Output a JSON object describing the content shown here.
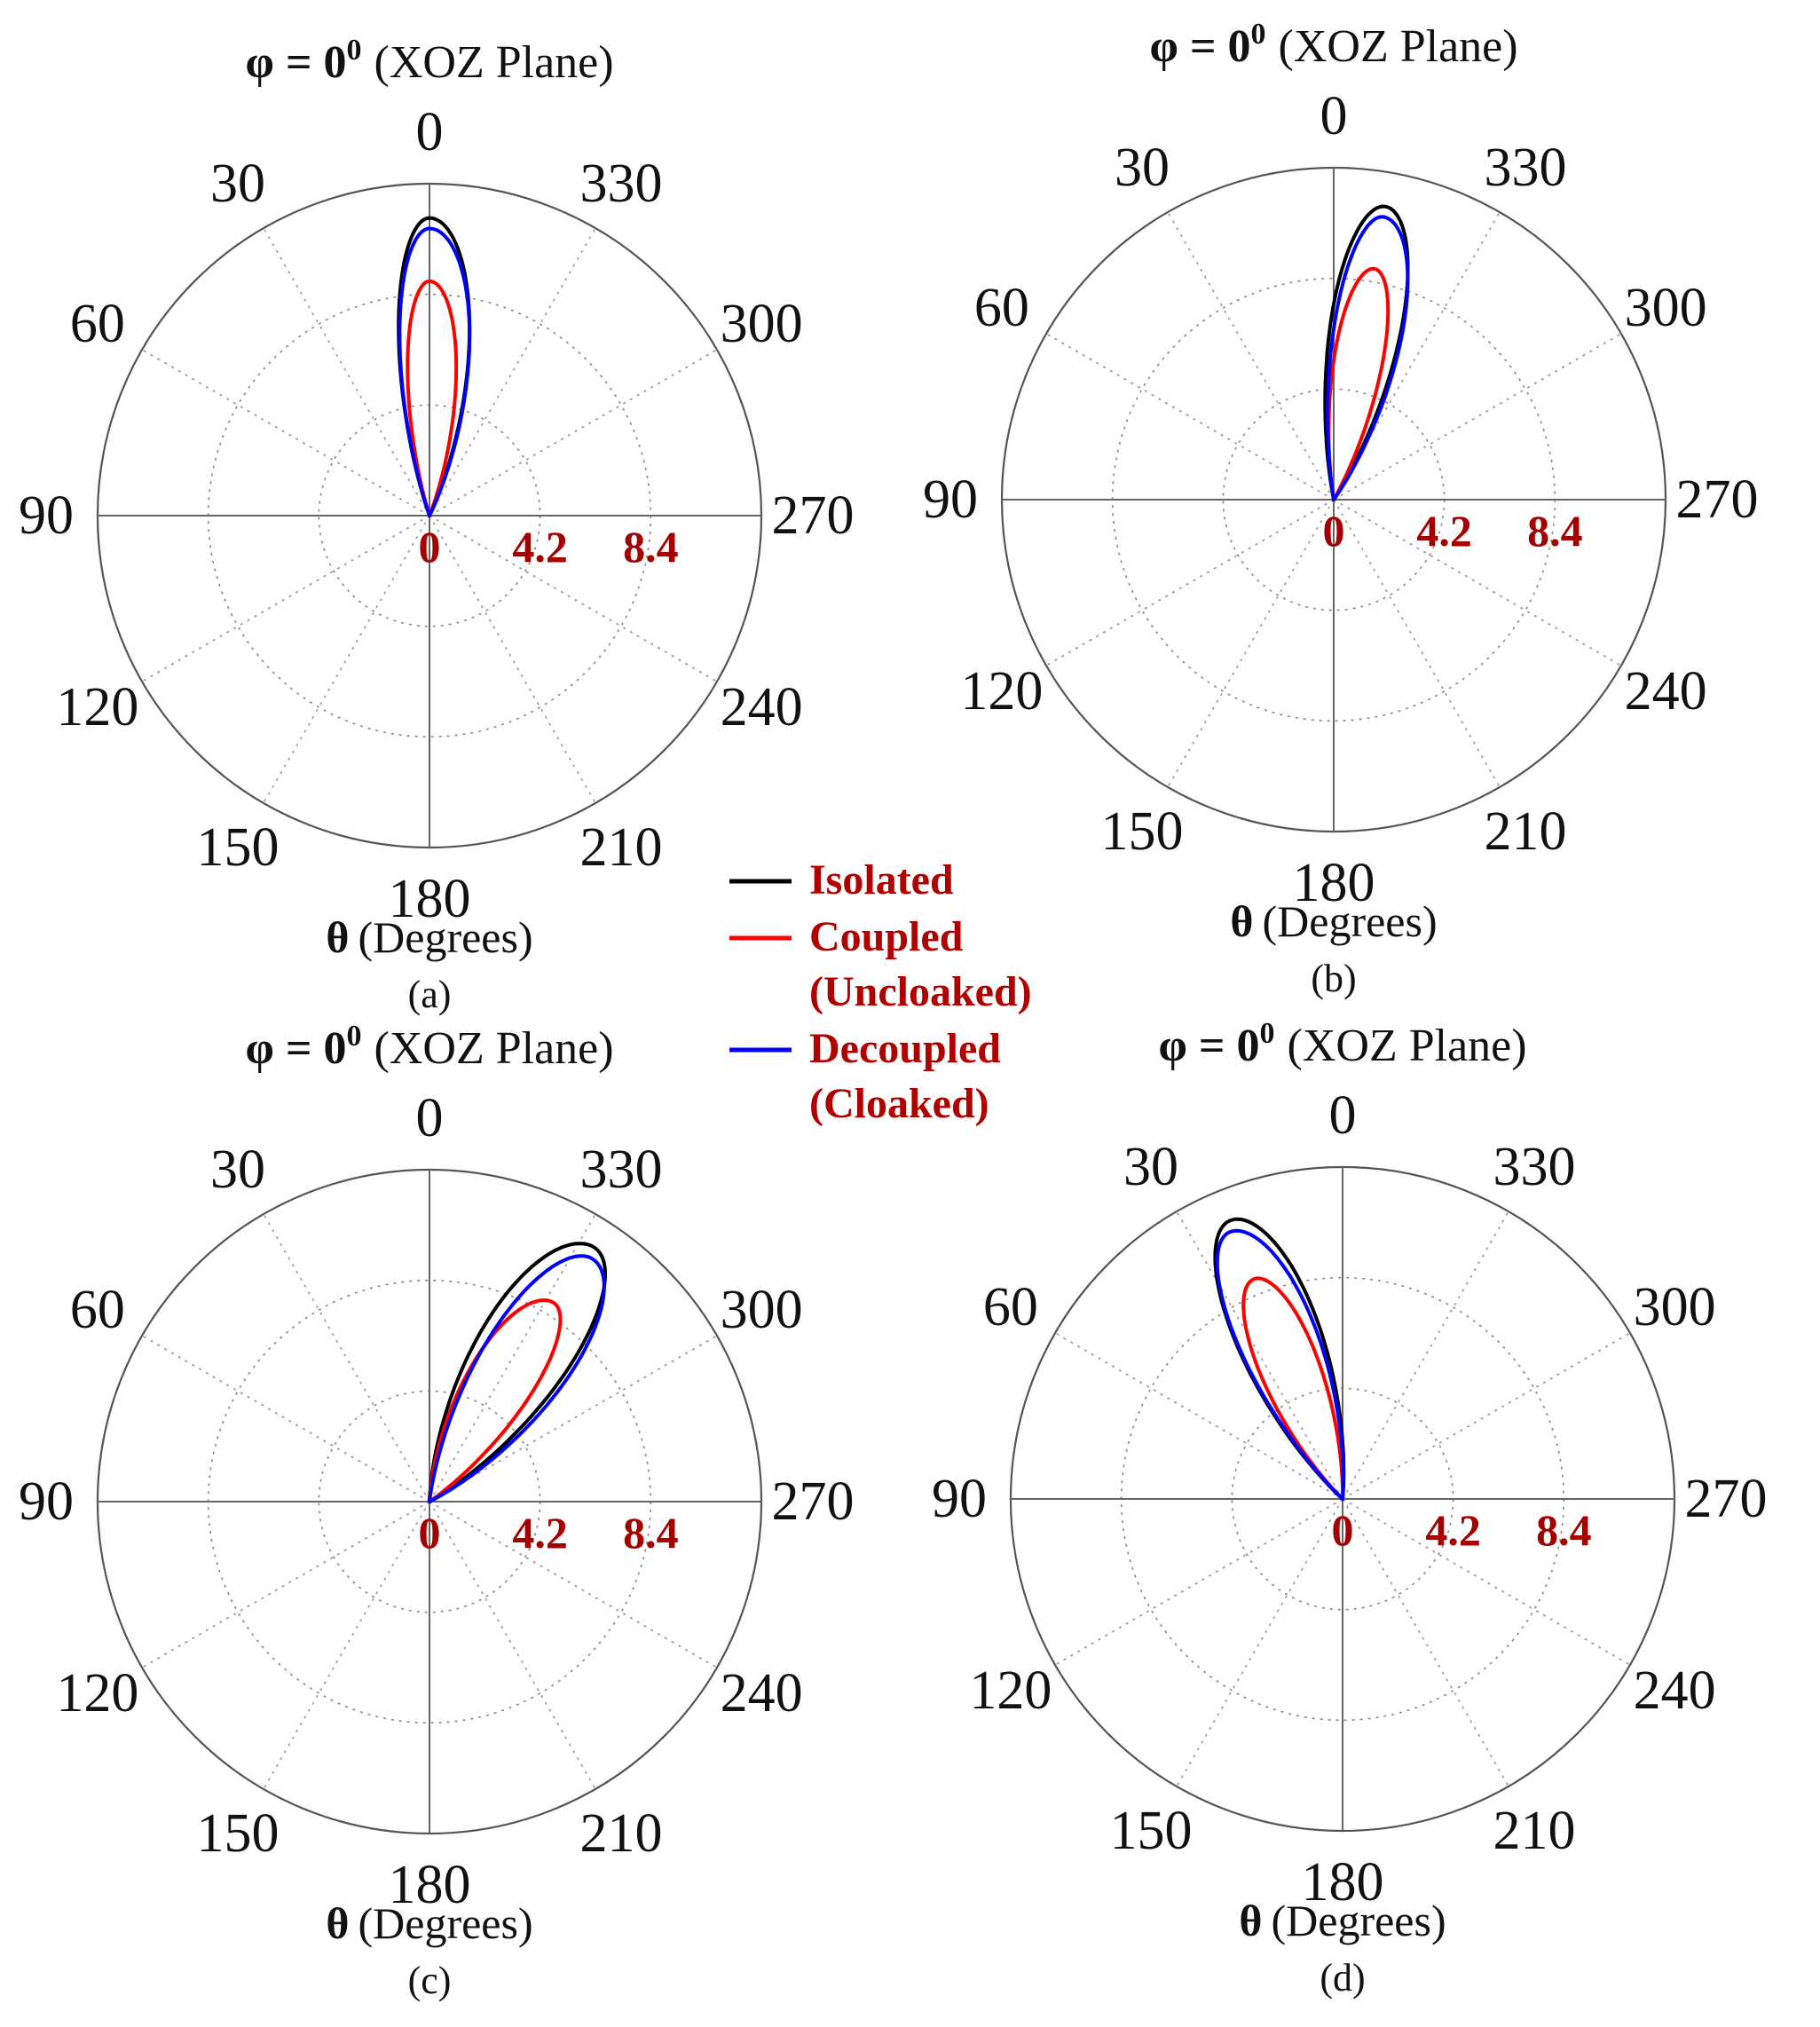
{
  "page": {
    "background": "#ffffff"
  },
  "legend": {
    "items": [
      {
        "lines": [
          "Isolated"
        ],
        "color": "#000000"
      },
      {
        "lines": [
          "Coupled",
          "(Uncloaked)"
        ],
        "color": "#ff0000"
      },
      {
        "lines": [
          "Decoupled",
          "(Cloaked)"
        ],
        "color": "#0000ff"
      }
    ],
    "text_color": "#b00000"
  },
  "chart_data": [
    {
      "type": "polar",
      "panel": "(a)",
      "title": {
        "symbol": "φ = 0",
        "sup": "0",
        "text": "(XOZ Plane)"
      },
      "xlabel": {
        "symbol": "θ",
        "text": "(Degrees)"
      },
      "angle_ticks": [
        "0",
        "30",
        "60",
        "90",
        "120",
        "150",
        "180",
        "210",
        "240",
        "270",
        "300",
        "330"
      ],
      "angle_direction": "counterclockwise",
      "zero_location": "top",
      "radial_ticks": [
        0,
        4.2,
        8.4
      ],
      "rlim": [
        0,
        12.6
      ],
      "grid": true,
      "series": [
        {
          "name": "Isolated",
          "color": "#000000",
          "peak": 11.3,
          "peak_angle": 0,
          "hw_left": 13,
          "hw_right": 10,
          "skew": 1.5
        },
        {
          "name": "Coupled (Uncloaked)",
          "color": "#ff0000",
          "peak": 8.9,
          "peak_angle": 0,
          "hw_left": 11,
          "hw_right": 9,
          "skew": 1.5
        },
        {
          "name": "Decoupled (Cloaked)",
          "color": "#0000ff",
          "peak": 10.9,
          "peak_angle": 0,
          "hw_left": 13.5,
          "hw_right": 10,
          "skew": 1.5
        }
      ]
    },
    {
      "type": "polar",
      "panel": "(b)",
      "title": {
        "symbol": "φ = 0",
        "sup": "0",
        "text": "(XOZ Plane)"
      },
      "xlabel": {
        "symbol": "θ",
        "text": "(Degrees)"
      },
      "angle_ticks": [
        "0",
        "30",
        "60",
        "90",
        "120",
        "150",
        "180",
        "210",
        "240",
        "270",
        "300",
        "330"
      ],
      "angle_direction": "counterclockwise",
      "zero_location": "top",
      "radial_ticks": [
        0,
        4.2,
        8.4
      ],
      "rlim": [
        0,
        12.6
      ],
      "grid": true,
      "series": [
        {
          "name": "Isolated",
          "color": "#000000",
          "peak": 11.3,
          "peak_angle": -10,
          "hw_left": 12,
          "hw_right": 11,
          "skew": 1.5
        },
        {
          "name": "Coupled (Uncloaked)",
          "color": "#ff0000",
          "peak": 8.9,
          "peak_angle": -10,
          "hw_left": 10,
          "hw_right": 10,
          "skew": 1.5
        },
        {
          "name": "Decoupled (Cloaked)",
          "color": "#0000ff",
          "peak": 10.9,
          "peak_angle": -10,
          "hw_left": 13,
          "hw_right": 10,
          "skew": 1.5
        }
      ]
    },
    {
      "type": "polar",
      "panel": "(c)",
      "title": {
        "symbol": "φ = 0",
        "sup": "0",
        "text": "(XOZ Plane)"
      },
      "xlabel": {
        "symbol": "θ",
        "text": "(Degrees)"
      },
      "angle_ticks": [
        "0",
        "30",
        "60",
        "90",
        "120",
        "150",
        "180",
        "210",
        "240",
        "270",
        "300",
        "330"
      ],
      "angle_direction": "counterclockwise",
      "zero_location": "top",
      "radial_ticks": [
        0,
        4.2,
        8.4
      ],
      "rlim": [
        0,
        12.6
      ],
      "grid": true,
      "series": [
        {
          "name": "Isolated",
          "color": "#000000",
          "peak": 11.5,
          "peak_angle": -33,
          "hw_left": 14,
          "hw_right": 16,
          "skew": 1.5
        },
        {
          "name": "Coupled (Uncloaked)",
          "color": "#ff0000",
          "peak": 8.9,
          "peak_angle": -32,
          "hw_left": 12,
          "hw_right": 15,
          "skew": 1.5
        },
        {
          "name": "Decoupled (Cloaked)",
          "color": "#0000ff",
          "peak": 11.1,
          "peak_angle": -34,
          "hw_left": 15,
          "hw_right": 14,
          "skew": 1.5
        }
      ]
    },
    {
      "type": "polar",
      "panel": "(d)",
      "title": {
        "symbol": "φ = 0",
        "sup": "0",
        "text": "(XOZ Plane)"
      },
      "xlabel": {
        "symbol": "θ",
        "text": "(Degrees)"
      },
      "angle_ticks": [
        "0",
        "30",
        "60",
        "90",
        "120",
        "150",
        "180",
        "210",
        "240",
        "270",
        "300",
        "330"
      ],
      "angle_direction": "counterclockwise",
      "zero_location": "top",
      "radial_ticks": [
        0,
        4.2,
        8.4
      ],
      "rlim": [
        0,
        12.6
      ],
      "grid": true,
      "series": [
        {
          "name": "Isolated",
          "color": "#000000",
          "peak": 11.4,
          "peak_angle": 22,
          "hw_left": 14,
          "hw_right": 13,
          "skew": 1.5
        },
        {
          "name": "Coupled (Uncloaked)",
          "color": "#ff0000",
          "peak": 9.0,
          "peak_angle": 22,
          "hw_left": 12,
          "hw_right": 12,
          "skew": 1.5
        },
        {
          "name": "Decoupled (Cloaked)",
          "color": "#0000ff",
          "peak": 11.0,
          "peak_angle": 23,
          "hw_left": 14,
          "hw_right": 12,
          "skew": 1.5
        }
      ]
    }
  ]
}
